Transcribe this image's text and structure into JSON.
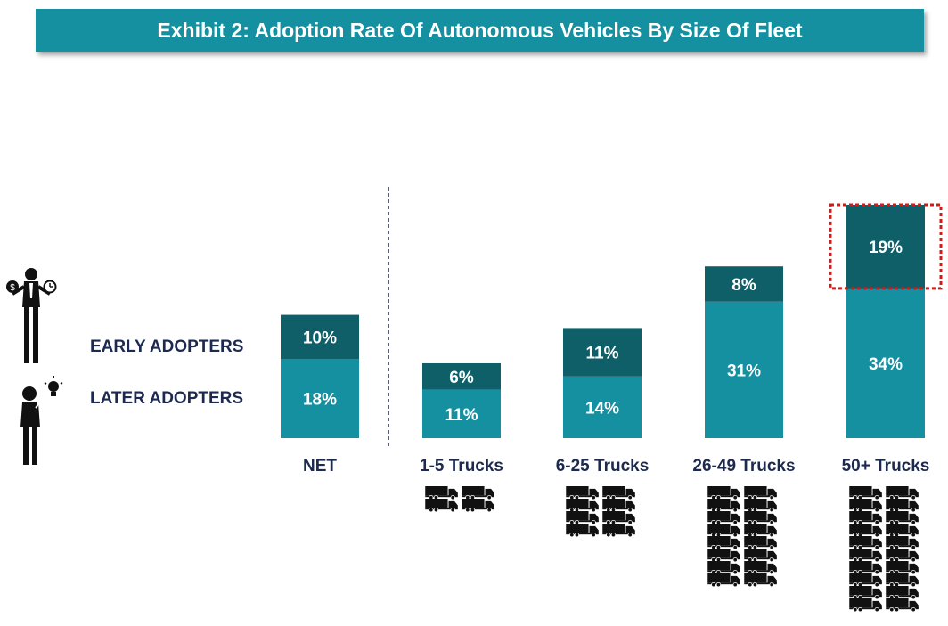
{
  "title": "Exhibit 2: Adoption Rate Of Autonomous Vehicles By Size Of Fleet",
  "colors": {
    "banner": "#1590a0",
    "early": "#0f5f68",
    "later": "#1590a0",
    "label": "#1d2a4f",
    "highlight": "#d11a1a"
  },
  "legend": [
    {
      "key": "early",
      "label": "EARLY ADOPTERS",
      "icon": "businessman-money-clock-icon"
    },
    {
      "key": "later",
      "label": "LATER ADOPTERS",
      "icon": "person-thinking-lightbulb-icon"
    }
  ],
  "chart_data": {
    "type": "bar",
    "stacked": true,
    "categories": [
      "NET",
      "1-5 Trucks",
      "6-25 Trucks",
      "26-49 Trucks",
      "50+ Trucks"
    ],
    "series": [
      {
        "name": "LATER ADOPTERS",
        "values": [
          18,
          11,
          14,
          31,
          34
        ],
        "labels": [
          "18%",
          "11%",
          "14%",
          "31%",
          "34%"
        ]
      },
      {
        "name": "EARLY ADOPTERS",
        "values": [
          10,
          6,
          11,
          8,
          19
        ],
        "labels": [
          "10%",
          "6%",
          "11%",
          "8%",
          "19%"
        ]
      }
    ],
    "ylim": [
      0,
      53
    ],
    "grid": false,
    "separator_after": "NET",
    "highlighted": {
      "category": "50+ Trucks",
      "series": "EARLY ADOPTERS"
    },
    "truck_icons": [
      0,
      4,
      8,
      16,
      20
    ]
  }
}
